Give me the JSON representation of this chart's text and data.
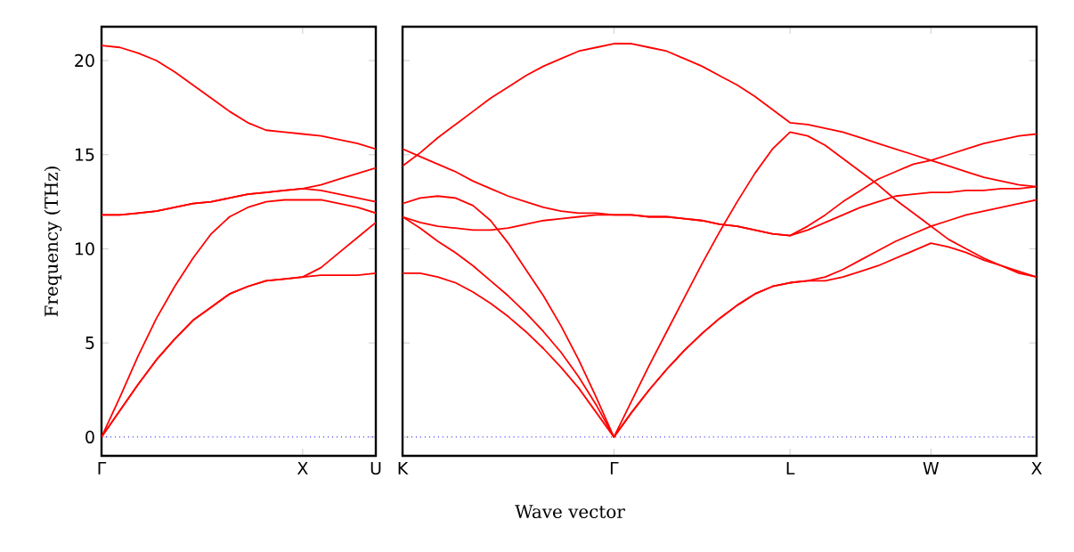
{
  "chart_data": [
    {
      "type": "line",
      "ylabel": "Frequency (THz)",
      "categories": [
        "Γ",
        null,
        null,
        null,
        null,
        null,
        null,
        null,
        null,
        null,
        null,
        "X",
        null,
        null,
        null,
        "U"
      ],
      "ylim": [
        -1,
        21.8
      ],
      "yticks": [
        0,
        5,
        10,
        15,
        20
      ],
      "marker": "none",
      "line_style": "solid",
      "ref_lines": [
        {
          "axis": "y",
          "value": 0,
          "color": "#0000ff",
          "line_style": "dotted"
        }
      ],
      "series": [
        {
          "color": "#ff0000",
          "values": [
            0,
            1.4,
            2.8,
            4.1,
            5.2,
            6.2,
            6.9,
            7.6,
            8.0,
            8.3,
            8.4,
            8.5,
            8.6,
            8.6,
            8.6,
            8.7
          ]
        },
        {
          "color": "#ff0000",
          "values": [
            0,
            1.4,
            2.8,
            4.1,
            5.2,
            6.2,
            6.9,
            7.6,
            8.0,
            8.3,
            8.4,
            8.5,
            9.0,
            9.8,
            10.6,
            11.4
          ]
        },
        {
          "color": "#ff0000",
          "values": [
            0,
            2.1,
            4.3,
            6.3,
            8.0,
            9.5,
            10.8,
            11.7,
            12.2,
            12.5,
            12.6,
            12.6,
            12.6,
            12.4,
            12.2,
            11.9
          ]
        },
        {
          "color": "#ff0000",
          "values": [
            11.8,
            11.8,
            11.9,
            12.0,
            12.2,
            12.4,
            12.5,
            12.7,
            12.9,
            13.0,
            13.1,
            13.2,
            13.1,
            12.9,
            12.7,
            12.5
          ]
        },
        {
          "color": "#ff0000",
          "values": [
            11.8,
            11.8,
            11.9,
            12.0,
            12.2,
            12.4,
            12.5,
            12.7,
            12.9,
            13.0,
            13.1,
            13.2,
            13.4,
            13.7,
            14.0,
            14.3
          ]
        },
        {
          "color": "#ff0000",
          "values": [
            20.8,
            20.7,
            20.4,
            20.0,
            19.4,
            18.7,
            18.0,
            17.3,
            16.7,
            16.3,
            16.2,
            16.1,
            16.0,
            15.8,
            15.6,
            15.3
          ]
        }
      ]
    },
    {
      "type": "line",
      "xlabel": "Wave vector",
      "categories": [
        "K",
        null,
        null,
        null,
        null,
        null,
        null,
        null,
        null,
        null,
        null,
        null,
        "Γ",
        null,
        null,
        null,
        null,
        null,
        null,
        null,
        null,
        null,
        "L",
        null,
        null,
        null,
        null,
        null,
        null,
        null,
        "W",
        null,
        null,
        null,
        null,
        null,
        "X"
      ],
      "ylim": [
        -1,
        21.8
      ],
      "yticks": [
        0,
        5,
        10,
        15,
        20
      ],
      "tick_labels": "x",
      "marker": "none",
      "line_style": "solid",
      "ref_lines": [
        {
          "axis": "y",
          "value": 0,
          "color": "#0000ff",
          "line_style": "dotted"
        }
      ],
      "series": [
        {
          "color": "#ff0000",
          "values": [
            14.4,
            15.1,
            15.9,
            16.6,
            17.3,
            18.0,
            18.6,
            19.2,
            19.7,
            20.1,
            20.5,
            20.7,
            20.9,
            20.9,
            20.7,
            20.5,
            20.1,
            19.7,
            19.2,
            18.7,
            18.1,
            17.4,
            16.7,
            16.6,
            16.4,
            16.2,
            15.9,
            15.6,
            15.3,
            15.0,
            14.7,
            14.4,
            14.1,
            13.8,
            13.6,
            13.4,
            13.3
          ]
        },
        {
          "color": "#ff0000",
          "values": [
            15.3,
            14.9,
            14.5,
            14.1,
            13.6,
            13.2,
            12.8,
            12.5,
            12.2,
            12.0,
            11.9,
            11.9,
            11.8,
            11.8,
            11.7,
            11.7,
            11.6,
            11.5,
            11.3,
            11.2,
            11.0,
            10.8,
            10.7,
            11.2,
            11.8,
            12.5,
            13.1,
            13.7,
            14.1,
            14.5,
            14.7,
            15.0,
            15.3,
            15.6,
            15.8,
            16.0,
            16.1
          ]
        },
        {
          "color": "#ff0000",
          "values": [
            11.7,
            11.4,
            11.2,
            11.1,
            11.0,
            11.0,
            11.1,
            11.3,
            11.5,
            11.6,
            11.7,
            11.8,
            11.8,
            11.8,
            11.7,
            11.7,
            11.6,
            11.5,
            11.3,
            11.2,
            11.0,
            10.8,
            10.7,
            11.0,
            11.4,
            11.8,
            12.2,
            12.5,
            12.8,
            12.9,
            13.0,
            13.0,
            13.1,
            13.1,
            13.2,
            13.2,
            13.3
          ]
        },
        {
          "color": "#ff0000",
          "values": [
            12.4,
            12.7,
            12.8,
            12.7,
            12.3,
            11.5,
            10.3,
            8.9,
            7.5,
            5.9,
            4.1,
            2.1,
            0,
            1.9,
            3.8,
            5.6,
            7.4,
            9.2,
            10.9,
            12.5,
            14.0,
            15.3,
            16.2,
            16.0,
            15.5,
            14.8,
            14.1,
            13.4,
            12.6,
            11.9,
            11.2,
            10.5,
            10.0,
            9.5,
            9.1,
            8.7,
            8.5
          ]
        },
        {
          "color": "#ff0000",
          "values": [
            11.7,
            11.1,
            10.4,
            9.8,
            9.1,
            8.3,
            7.5,
            6.6,
            5.6,
            4.5,
            3.2,
            1.7,
            0,
            1.3,
            2.5,
            3.6,
            4.6,
            5.5,
            6.3,
            7.0,
            7.6,
            8.0,
            8.2,
            8.3,
            8.5,
            8.9,
            9.4,
            9.9,
            10.4,
            10.8,
            11.2,
            11.5,
            11.8,
            12.0,
            12.2,
            12.4,
            12.6
          ]
        },
        {
          "color": "#ff0000",
          "values": [
            8.7,
            8.7,
            8.5,
            8.2,
            7.7,
            7.1,
            6.4,
            5.6,
            4.7,
            3.7,
            2.6,
            1.3,
            0,
            1.3,
            2.5,
            3.6,
            4.6,
            5.5,
            6.3,
            7.0,
            7.6,
            8.0,
            8.2,
            8.3,
            8.3,
            8.5,
            8.8,
            9.1,
            9.5,
            9.9,
            10.3,
            10.1,
            9.8,
            9.4,
            9.1,
            8.8,
            8.5
          ]
        }
      ]
    }
  ]
}
